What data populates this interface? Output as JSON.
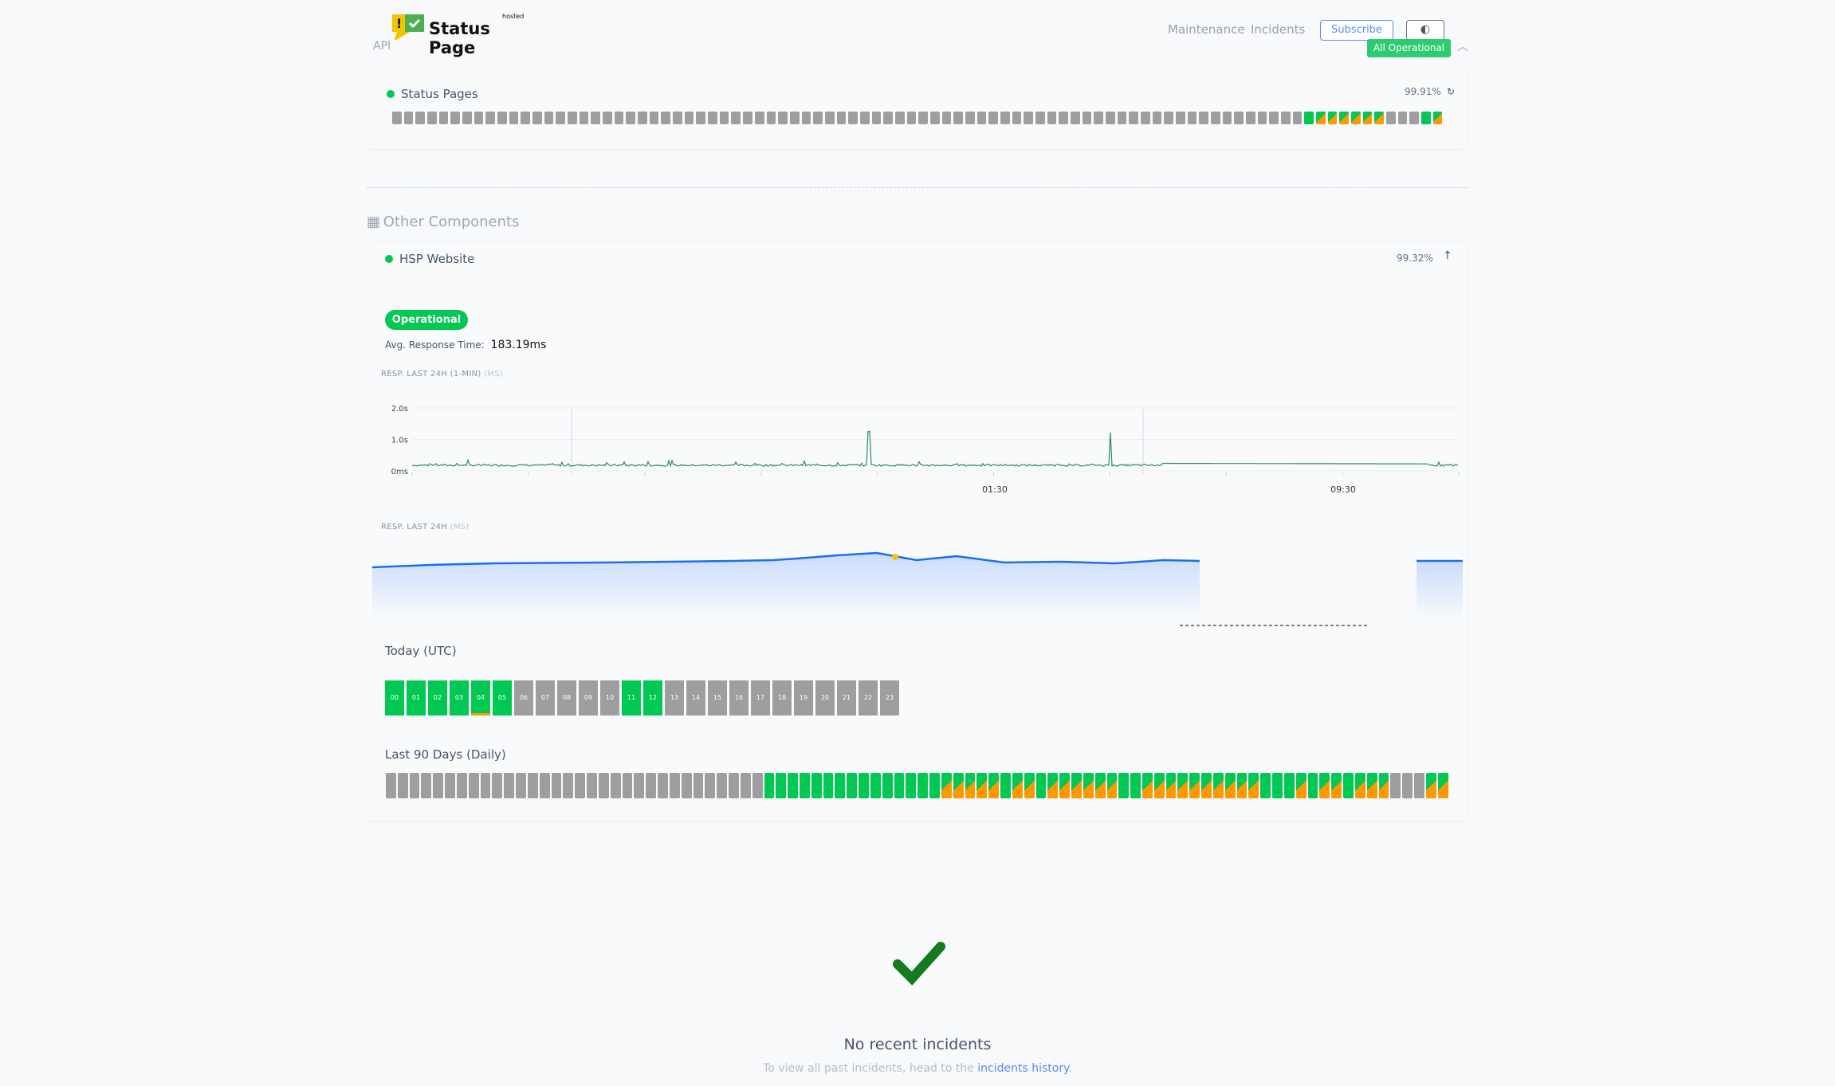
{
  "header": {
    "logo_text": "Status Page",
    "logo_sup": "hosted",
    "api_label": "API",
    "nav": [
      "Maintenance",
      "Incidents"
    ],
    "subscribe": "Subscribe",
    "theme_icon": "contrast-icon",
    "overall_status": "All Operational"
  },
  "colors": {
    "operational": "#00c853",
    "partial": "#ff9800",
    "no_data": "#9e9e9e",
    "link": "#5b8def",
    "check": "#137a1f"
  },
  "status_pages": {
    "name": "Status Pages",
    "uptime": "99.91%",
    "days": "XXXXXXXXXXXXXXXXXXXXXXXXXXXXXXXXXXXXXXXXXXXXXXXXXXXXXXXXXXXXXXXXXXXXXXXXXXXXXXGHHHHHHXXXGH"
  },
  "other": {
    "title": "Other Components"
  },
  "hsp": {
    "name": "HSP Website",
    "uptime": "99.32%",
    "status": "Operational",
    "avg_label": "Avg. Response Time:",
    "avg_value": "183.19ms",
    "chart1": {
      "title": "RESP. LAST 24H (1-MIN)",
      "unit": "(MS)",
      "y_ticks": [
        "2.0s",
        "1.0s",
        "0ms"
      ],
      "x_ticks": [
        "01:30",
        "09:30"
      ]
    },
    "chart2": {
      "title": "RESP. LAST 24H",
      "unit": "(MS)"
    },
    "today_label": "Today (UTC)",
    "hours": [
      {
        "h": "00",
        "s": "g"
      },
      {
        "h": "01",
        "s": "g"
      },
      {
        "h": "02",
        "s": "g"
      },
      {
        "h": "03",
        "s": "g"
      },
      {
        "h": "04",
        "s": "g o"
      },
      {
        "h": "05",
        "s": "g"
      },
      {
        "h": "06",
        "s": "x"
      },
      {
        "h": "07",
        "s": "x"
      },
      {
        "h": "08",
        "s": "x"
      },
      {
        "h": "09",
        "s": "x"
      },
      {
        "h": "10",
        "s": "x"
      },
      {
        "h": "11",
        "s": "g"
      },
      {
        "h": "12",
        "s": "g"
      },
      {
        "h": "13",
        "s": "x"
      },
      {
        "h": "14",
        "s": "x"
      },
      {
        "h": "15",
        "s": "x"
      },
      {
        "h": "16",
        "s": "x"
      },
      {
        "h": "17",
        "s": "x"
      },
      {
        "h": "18",
        "s": "x"
      },
      {
        "h": "19",
        "s": "x"
      },
      {
        "h": "20",
        "s": "x"
      },
      {
        "h": "21",
        "s": "x"
      },
      {
        "h": "22",
        "s": "x"
      },
      {
        "h": "23",
        "s": "x"
      }
    ],
    "days_label": "Last 90 Days (Daily)",
    "days": "XXXXXXXXXXXXXXXXXXXXXXXXXXXXXXXXGGGGGGGGGGGGGGGHHHHHGHHGHHHHHHGGHHHHHHHHHHGGGHGHHGHHHXXXHH"
  },
  "incidents": {
    "title": "No recent incidents",
    "text": "To view all past incidents, head to the",
    "link": "incidents history",
    "period": "."
  }
}
